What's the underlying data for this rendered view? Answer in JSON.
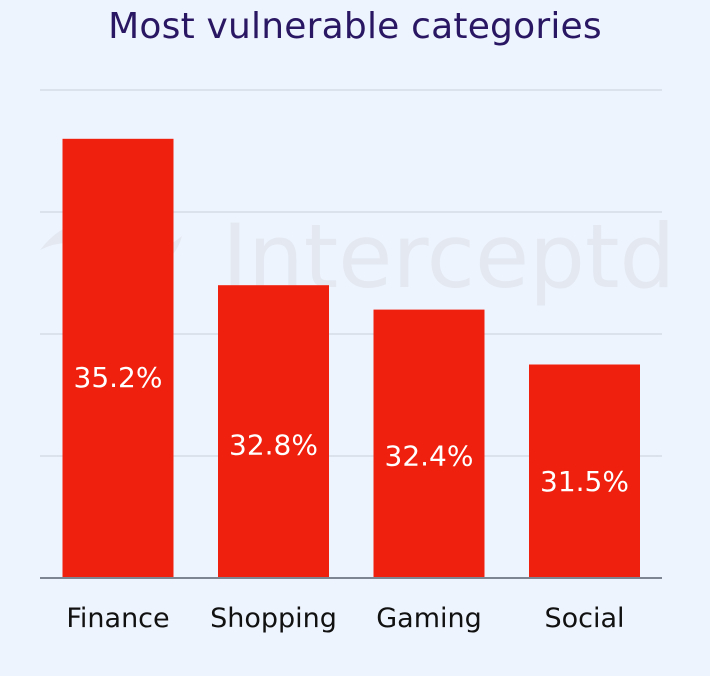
{
  "chart_data": {
    "type": "bar",
    "title": "Most vulnerable categories",
    "categories": [
      "Finance",
      "Shopping",
      "Gaming",
      "Social"
    ],
    "values": [
      35.2,
      32.8,
      32.4,
      31.5
    ],
    "value_labels": [
      "35.2%",
      "32.8%",
      "32.4%",
      "31.5%"
    ],
    "ylim": [
      28.0,
      36.0
    ],
    "grid": true,
    "legend": "none",
    "watermark": "Interceptd",
    "colors": {
      "background": "#eef4fd",
      "bar": "#f0200e",
      "title": "#2a1763",
      "grid": "#c9cfd9",
      "axis": "#7d8592",
      "value_label": "#ffffff",
      "category_label": "#111111",
      "watermark": "#e3e8f1"
    }
  }
}
